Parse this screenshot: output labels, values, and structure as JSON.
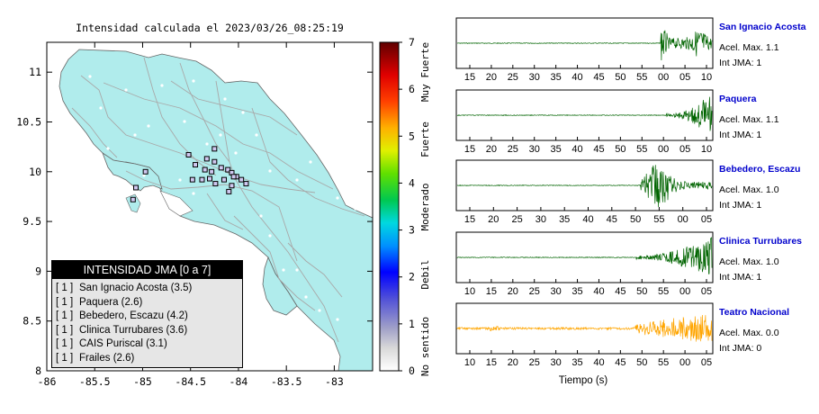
{
  "map": {
    "title": "Intensidad calculada el 2023/03/26_08:25:19",
    "x_ticks": [
      "-86",
      "-85.5",
      "-85",
      "-84.5",
      "-84",
      "-83.5",
      "-83"
    ],
    "y_ticks": [
      "11",
      "10.5",
      "10",
      "9.5",
      "9",
      "8.5",
      "8"
    ],
    "land_color": "#b0ecec",
    "station_markers": [
      {
        "lon": -84.52,
        "lat": 10.17
      },
      {
        "lon": -84.45,
        "lat": 10.07
      },
      {
        "lon": -84.33,
        "lat": 10.13
      },
      {
        "lon": -84.25,
        "lat": 10.1
      },
      {
        "lon": -84.18,
        "lat": 10.04
      },
      {
        "lon": -84.11,
        "lat": 10.02
      },
      {
        "lon": -84.07,
        "lat": 9.99
      },
      {
        "lon": -84.02,
        "lat": 9.95
      },
      {
        "lon": -83.97,
        "lat": 9.92
      },
      {
        "lon": -84.15,
        "lat": 9.92
      },
      {
        "lon": -84.24,
        "lat": 9.88
      },
      {
        "lon": -84.3,
        "lat": 9.93
      },
      {
        "lon": -84.38,
        "lat": 9.92
      },
      {
        "lon": -84.48,
        "lat": 9.92
      },
      {
        "lon": -84.28,
        "lat": 10.0
      },
      {
        "lon": -84.35,
        "lat": 10.02
      },
      {
        "lon": -84.07,
        "lat": 9.86
      },
      {
        "lon": -84.1,
        "lat": 9.8
      },
      {
        "lon": -84.05,
        "lat": 9.95
      },
      {
        "lon": -83.92,
        "lat": 9.88
      },
      {
        "lon": -84.97,
        "lat": 10.0
      },
      {
        "lon": -85.07,
        "lat": 9.84
      },
      {
        "lon": -85.1,
        "lat": 9.72
      },
      {
        "lon": -84.25,
        "lat": 10.23
      }
    ]
  },
  "colorbar": {
    "tick_labels": [
      "0",
      "1",
      "2",
      "3",
      "4",
      "5",
      "6",
      "7"
    ],
    "category_labels": [
      "No sentido",
      "Debil",
      "Moderado",
      "Fuerte",
      "Muy Fuerte"
    ]
  },
  "legend": {
    "title": "INTENSIDAD JMA [0 a 7]",
    "rows": [
      {
        "level": "[ 1 ]",
        "text": "San Ignacio Acosta (3.5)"
      },
      {
        "level": "[ 1 ]",
        "text": "Paquera (2.6)"
      },
      {
        "level": "[ 1 ]",
        "text": "Bebedero, Escazu (4.2)"
      },
      {
        "level": "[ 1 ]",
        "text": "Clinica Turrubares (3.6)"
      },
      {
        "level": "[ 1 ]",
        "text": "CAIS Puriscal (3.1)"
      },
      {
        "level": "[ 1 ]",
        "text": "Frailes (2.6)"
      }
    ]
  },
  "waveforms": {
    "x_label": "Tiempo (s)",
    "panels": [
      {
        "name": "San Ignacio Acosta",
        "acel": "Acel. Max. 1.1",
        "int": "Int JMA: 1",
        "color": "#006400",
        "ticks": [
          "15",
          "20",
          "25",
          "30",
          "35",
          "40",
          "45",
          "50",
          "55",
          "00",
          "05",
          "10"
        ],
        "onset": 0.8,
        "pattern": "burst"
      },
      {
        "name": "Paquera",
        "acel": "Acel. Max. 1.1",
        "int": "Int JMA: 1",
        "color": "#006400",
        "ticks": [
          "15",
          "20",
          "25",
          "30",
          "35",
          "40",
          "45",
          "50",
          "55",
          "00",
          "05",
          "10"
        ],
        "onset": 0.82,
        "pattern": "rising"
      },
      {
        "name": "Bebedero, Escazu",
        "acel": "Acel. Max. 1.0",
        "int": "Int JMA: 1",
        "color": "#006400",
        "ticks": [
          "15",
          "20",
          "25",
          "30",
          "35",
          "40",
          "45",
          "50",
          "55",
          "00",
          "05"
        ],
        "onset": 0.72,
        "pattern": "center"
      },
      {
        "name": "Clinica Turrubares",
        "acel": "Acel. Max. 1.0",
        "int": "Int JMA: 1",
        "color": "#006400",
        "ticks": [
          "10",
          "15",
          "20",
          "25",
          "30",
          "35",
          "40",
          "45",
          "50",
          "55",
          "00",
          "05"
        ],
        "onset": 0.7,
        "pattern": "rising"
      },
      {
        "name": "Teatro Nacional",
        "acel": "Acel. Max. 0.0",
        "int": "Int JMA: 0",
        "color": "#ffa500",
        "ticks": [
          "10",
          "15",
          "20",
          "25",
          "30",
          "35",
          "40",
          "45",
          "50",
          "55",
          "00",
          "05"
        ],
        "onset": 0.7,
        "pattern": "noisy"
      }
    ]
  }
}
